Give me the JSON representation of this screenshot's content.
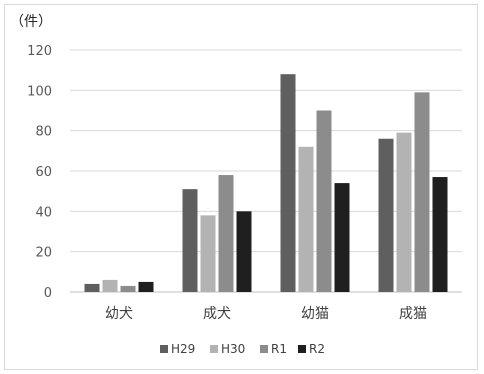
{
  "chart_data": {
    "type": "bar",
    "y_unit_label": "（件）",
    "categories": [
      "幼犬",
      "成犬",
      "幼猫",
      "成猫"
    ],
    "series": [
      {
        "name": "H29",
        "color": "#5f5f5f",
        "values": [
          4,
          51,
          108,
          76
        ]
      },
      {
        "name": "H30",
        "color": "#b3b3b3",
        "values": [
          6,
          38,
          72,
          79
        ]
      },
      {
        "name": "R1",
        "color": "#8c8c8c",
        "values": [
          3,
          58,
          90,
          99
        ]
      },
      {
        "name": "R2",
        "color": "#1f1f1f",
        "values": [
          5,
          40,
          54,
          57
        ]
      }
    ],
    "ylim": [
      0,
      120
    ],
    "yticks": [
      0,
      20,
      40,
      60,
      80,
      100,
      120
    ],
    "grid": true,
    "legend_position": "bottom"
  }
}
